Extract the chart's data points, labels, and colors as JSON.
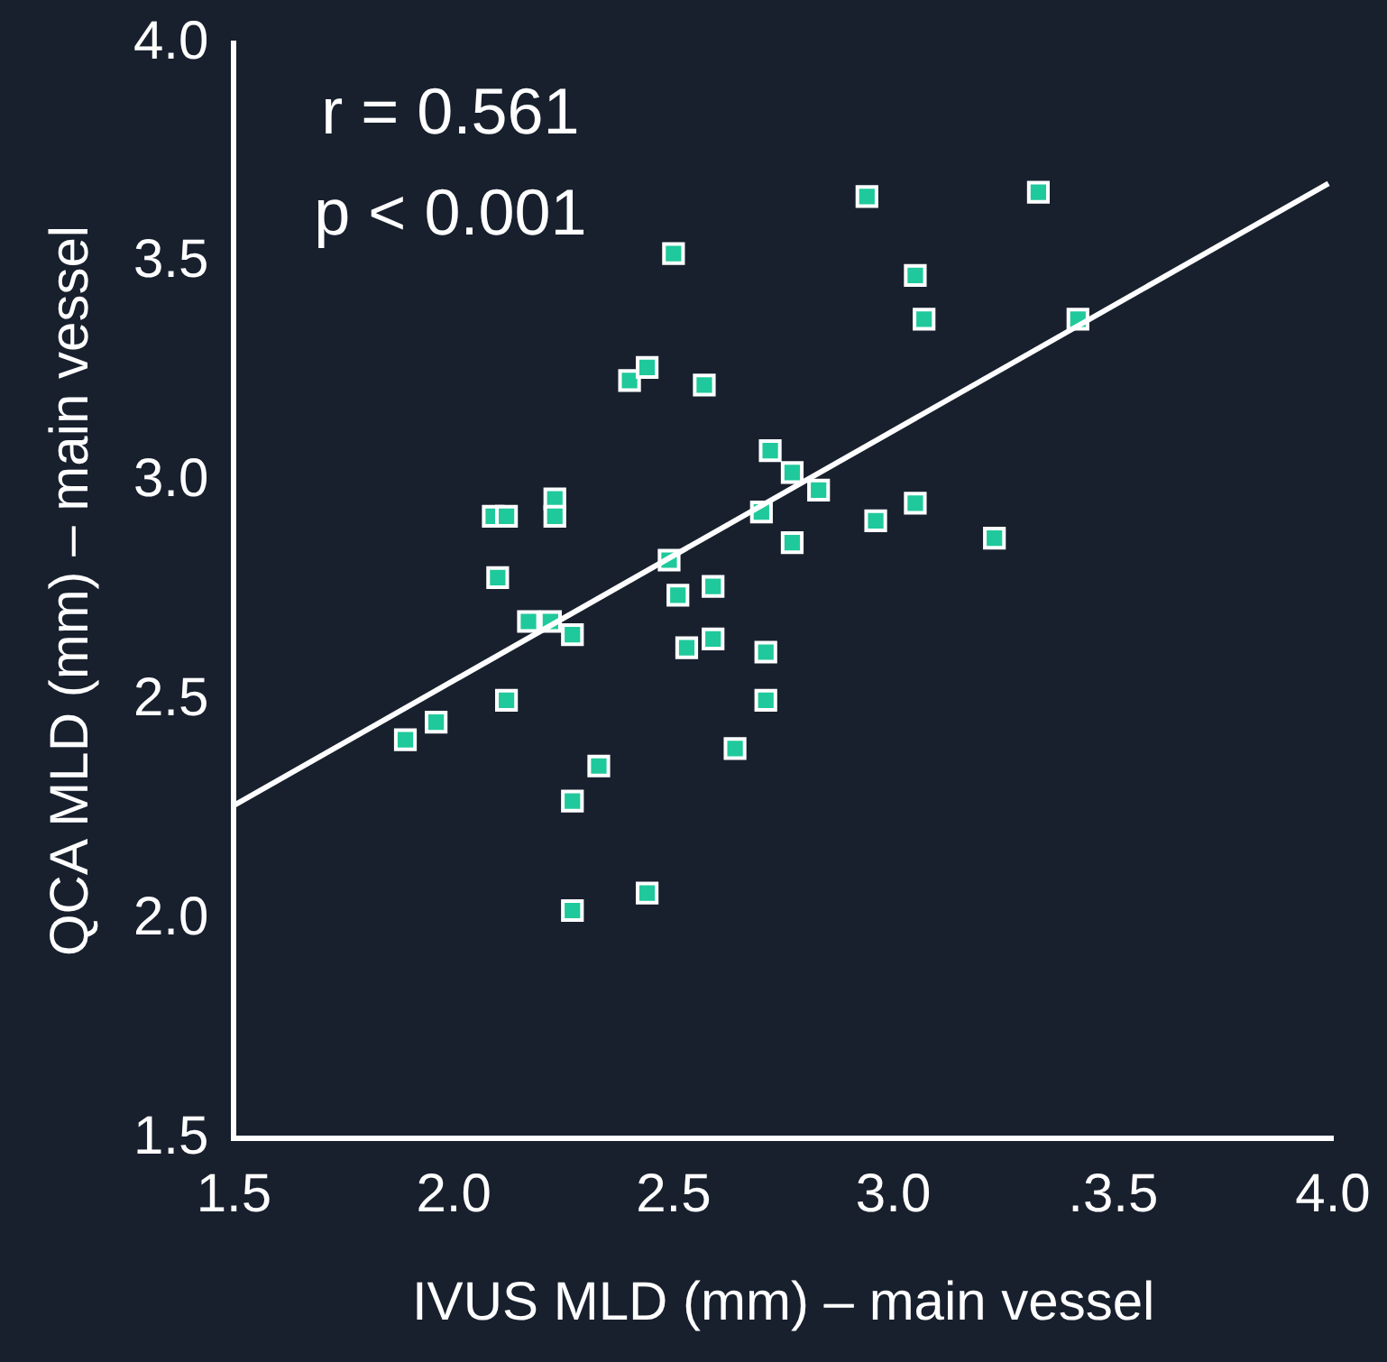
{
  "chart_data": {
    "type": "scatter",
    "xlabel": "IVUS MLD (mm) – main vessel",
    "ylabel": "QCA MLD (mm) – main vessel",
    "annotations": [
      "r = 0.561",
      "p < 0.001"
    ],
    "xlim": [
      1.5,
      4.0
    ],
    "ylim": [
      1.5,
      4.0
    ],
    "xticks": [
      {
        "value": 1.5,
        "label": "1.5"
      },
      {
        "value": 2.0,
        "label": "2.0"
      },
      {
        "value": 2.5,
        "label": "2.5"
      },
      {
        "value": 3.0,
        "label": "3.0"
      },
      {
        "value": 3.5,
        "label": ".3.5"
      },
      {
        "value": 4.0,
        "label": "4.0"
      }
    ],
    "yticks": [
      {
        "value": 1.5,
        "label": "1.5"
      },
      {
        "value": 2.0,
        "label": "2.0"
      },
      {
        "value": 2.5,
        "label": "2.5"
      },
      {
        "value": 3.0,
        "label": "3.0"
      },
      {
        "value": 3.5,
        "label": "3.5"
      },
      {
        "value": 4.0,
        "label": "4.0"
      }
    ],
    "grid": false,
    "legend": false,
    "marker": "square",
    "series": [
      {
        "type": "scatter",
        "color": "#1fc99b",
        "x": [
          1.89,
          1.96,
          2.09,
          2.12,
          2.1,
          2.12,
          2.17,
          2.22,
          2.23,
          2.23,
          2.27,
          2.27,
          2.27,
          2.33,
          2.4,
          2.44,
          2.44,
          2.5,
          2.49,
          2.51,
          2.53,
          2.57,
          2.59,
          2.59,
          2.64,
          2.7,
          2.72,
          2.71,
          2.71,
          2.77,
          2.77,
          2.83,
          2.94,
          2.96,
          3.05,
          3.07,
          3.05,
          3.23,
          3.33,
          3.42
        ],
        "values": [
          2.41,
          2.45,
          2.92,
          2.92,
          2.78,
          2.5,
          2.68,
          2.68,
          2.96,
          2.92,
          2.65,
          2.27,
          2.02,
          2.35,
          3.23,
          3.26,
          2.06,
          3.52,
          2.82,
          2.74,
          2.62,
          3.22,
          2.76,
          2.64,
          2.39,
          2.93,
          3.07,
          2.61,
          2.5,
          3.02,
          2.86,
          2.98,
          3.65,
          2.91,
          3.47,
          3.37,
          2.95,
          2.87,
          3.66,
          3.37
        ]
      },
      {
        "type": "line",
        "color": "#ffffff",
        "marker": "none",
        "x": [
          1.5,
          3.99
        ],
        "values": [
          2.26,
          3.68
        ]
      }
    ]
  }
}
